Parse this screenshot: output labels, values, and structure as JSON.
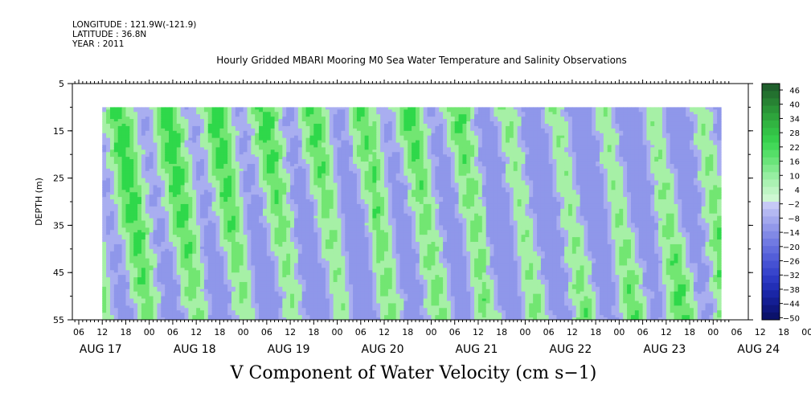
{
  "header": {
    "longitude": "LONGITUDE : 121.9W(-121.9)",
    "latitude": "LATITUDE : 36.8N",
    "year": "YEAR : 2011"
  },
  "chart_data": {
    "type": "heatmap",
    "title": "Hourly Gridded MBARI Mooring M0 Sea Water Temperature and Salinity Observations",
    "xlabel": "V Component of Water Velocity (cm s−1)",
    "ylabel": "DEPTH (m)",
    "y_ticks": [
      "5",
      "15",
      "25",
      "35",
      "45",
      "55"
    ],
    "ylim": [
      55,
      5
    ],
    "x_hour_ticks": [
      "06",
      "12",
      "18",
      "00",
      "06",
      "12",
      "18",
      "00",
      "06",
      "12",
      "18",
      "00",
      "06",
      "12",
      "18",
      "00",
      "06",
      "12",
      "18",
      "00",
      "06",
      "12",
      "18",
      "00",
      "06",
      "12",
      "18",
      "00",
      "06",
      "12",
      "18",
      "00"
    ],
    "x_day_labels": [
      "AUG 17",
      "AUG 18",
      "AUG 19",
      "AUG 20",
      "AUG 21",
      "AUG 22",
      "AUG 23",
      "AUG 24"
    ],
    "data_depth_range": [
      10,
      55
    ],
    "data_time_range": [
      "AUG 17 12:00",
      "AUG 24 02:00"
    ],
    "colorbar": {
      "labels": [
        "46",
        "40",
        "34",
        "28",
        "22",
        "16",
        "10",
        "4",
        "−2",
        "−8",
        "−14",
        "−20",
        "−26",
        "−32",
        "−38",
        "−44",
        "−50"
      ],
      "range": [
        -50,
        46
      ]
    },
    "grid": false
  },
  "colors": {
    "negative_light": "#a9aef0",
    "negative_mid": "#8f97ea",
    "positive_light": "#a6f0a6",
    "positive_mid": "#72e672",
    "positive_strong": "#2fd84a"
  }
}
